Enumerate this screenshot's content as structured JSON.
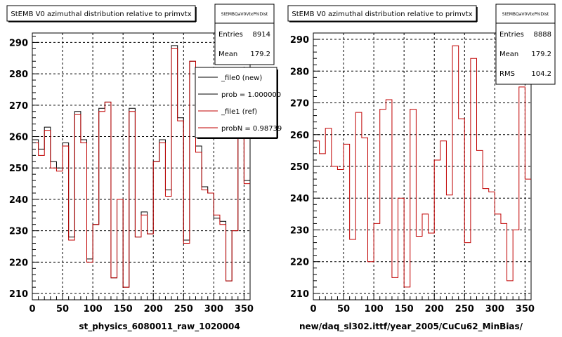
{
  "colors": {
    "hist_new": "#000000",
    "hist_ref": "#c00000",
    "grid": "#000000"
  },
  "footer": {
    "text": ""
  },
  "chart_data": [
    {
      "type": "histogram",
      "title": "StEMB V0 azimuthal distribution relative to primvtx",
      "xlabel": "st_physics_6080011_raw_1020004",
      "ylabel": "",
      "xlim": [
        0,
        360
      ],
      "ylim": [
        208,
        293
      ],
      "xticks": [
        0,
        50,
        100,
        150,
        200,
        250,
        300,
        350
      ],
      "yticks": [
        210,
        220,
        230,
        240,
        250,
        260,
        270,
        280,
        290
      ],
      "grid": true,
      "bin_edges": [
        0,
        10,
        20,
        30,
        40,
        50,
        60,
        70,
        80,
        90,
        100,
        110,
        120,
        130,
        140,
        150,
        160,
        170,
        180,
        190,
        200,
        210,
        220,
        230,
        240,
        250,
        260,
        270,
        280,
        290,
        300,
        310,
        320,
        330,
        340,
        350,
        360
      ],
      "stats": {
        "name": "StEMBQaV0VtxPhiDist",
        "entries_label": "Entries",
        "entries": "8914",
        "mean_label": "Mean",
        "mean": "179.2"
      },
      "legend": [
        "_file0 (new)",
        "prob = 1.000000",
        "_file1 (ref)",
        "probN = 0.98739"
      ],
      "series": [
        {
          "name": "_file0 (new)",
          "color": "#000000",
          "values": [
            259,
            256,
            263,
            252,
            250,
            258,
            228,
            268,
            259,
            221,
            232,
            269,
            271,
            215,
            240,
            212,
            269,
            228,
            236,
            229,
            252,
            259,
            243,
            289,
            266,
            227,
            284,
            257,
            244,
            242,
            234,
            233,
            214,
            230,
            267,
            246
          ]
        },
        {
          "name": "_file1 (ref)",
          "color": "#c00000",
          "values": [
            258,
            254,
            262,
            250,
            249,
            257,
            227,
            267,
            258,
            220,
            232,
            268,
            271,
            215,
            240,
            212,
            268,
            228,
            235,
            229,
            252,
            258,
            241,
            288,
            265,
            226,
            284,
            255,
            243,
            242,
            235,
            232,
            214,
            230,
            264,
            245
          ]
        }
      ]
    },
    {
      "type": "histogram",
      "title": "StEMB V0 azimuthal distribution relative to primvtx",
      "xlabel": "new/daq_sl302.ittf/year_2005/CuCu62_MinBias/",
      "ylabel": "",
      "xlim": [
        0,
        360
      ],
      "ylim": [
        208,
        292
      ],
      "xticks": [
        0,
        50,
        100,
        150,
        200,
        250,
        300,
        350
      ],
      "yticks": [
        210,
        220,
        230,
        240,
        250,
        260,
        270,
        280,
        290
      ],
      "grid": true,
      "bin_edges": [
        0,
        10,
        20,
        30,
        40,
        50,
        60,
        70,
        80,
        90,
        100,
        110,
        120,
        130,
        140,
        150,
        160,
        170,
        180,
        190,
        200,
        210,
        220,
        230,
        240,
        250,
        260,
        270,
        280,
        290,
        300,
        310,
        320,
        330,
        340,
        350,
        360
      ],
      "stats": {
        "name": "StEMBQaV0VtxPhiDist",
        "entries_label": "Entries",
        "entries": "8888",
        "mean_label": "Mean",
        "mean": "179.2",
        "rms_label": "RMS",
        "rms": "104.2"
      },
      "series": [
        {
          "name": "_file1 (ref)",
          "color": "#c00000",
          "values": [
            258,
            254,
            262,
            250,
            249,
            257,
            227,
            267,
            259,
            220,
            232,
            268,
            271,
            215,
            240,
            212,
            268,
            228,
            235,
            229,
            252,
            258,
            241,
            288,
            265,
            226,
            284,
            255,
            243,
            242,
            235,
            232,
            214,
            230,
            275,
            246
          ]
        }
      ]
    }
  ]
}
